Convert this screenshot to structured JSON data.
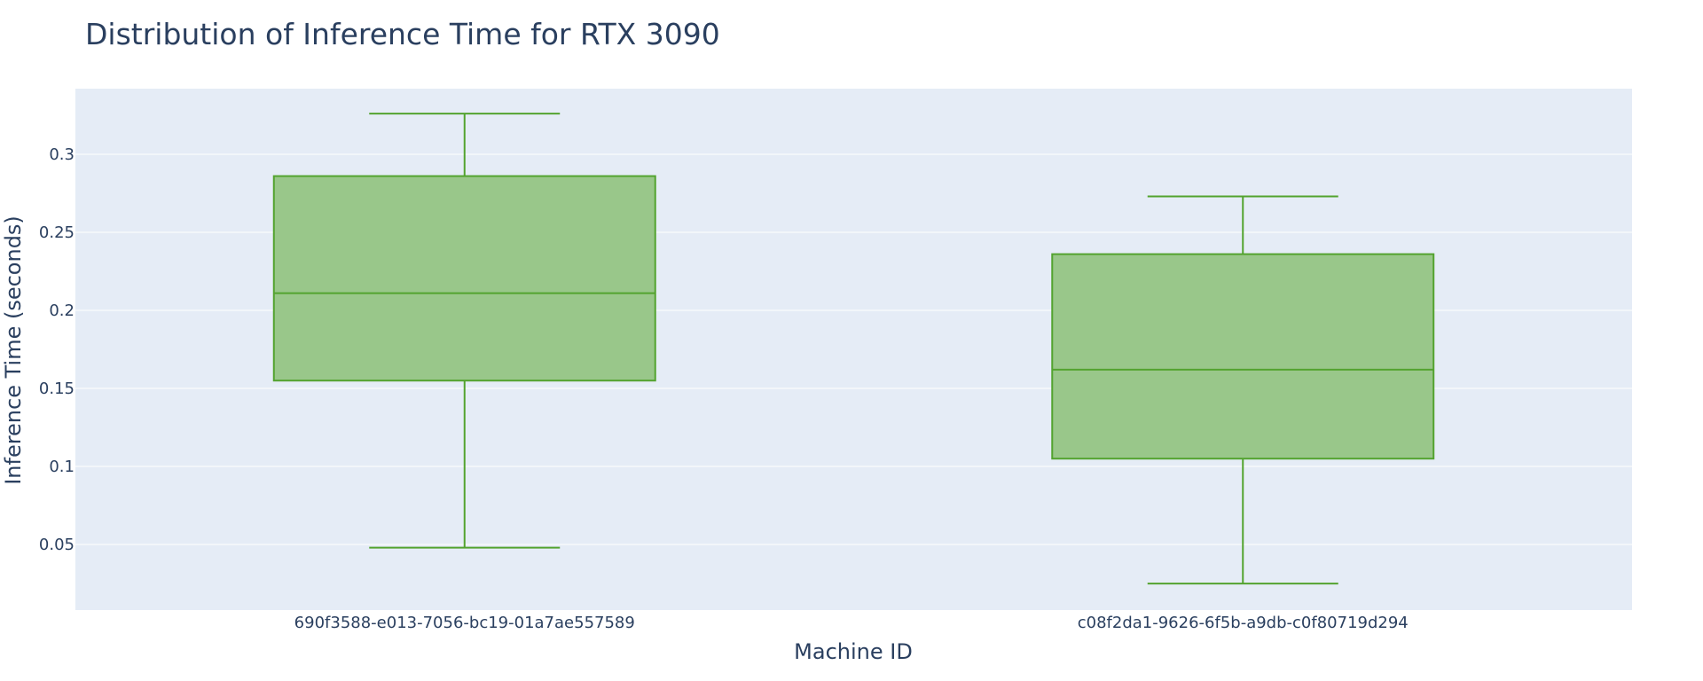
{
  "chart_data": {
    "type": "box",
    "title": "Distribution of Inference Time for RTX 3090",
    "xlabel": "Machine ID",
    "ylabel": "Inference Time (seconds)",
    "categories": [
      "690f3588-e013-7056-bc19-01a7ae557589",
      "c08f2da1-9626-6f5b-a9db-c0f80719d294"
    ],
    "boxes": [
      {
        "category": "690f3588-e013-7056-bc19-01a7ae557589",
        "min": 0.048,
        "q1": 0.155,
        "median": 0.211,
        "q3": 0.286,
        "max": 0.326
      },
      {
        "category": "c08f2da1-9626-6f5b-a9db-c0f80719d294",
        "min": 0.025,
        "q1": 0.105,
        "median": 0.162,
        "q3": 0.236,
        "max": 0.273
      }
    ],
    "yticks": [
      0.05,
      0.1,
      0.15,
      0.2,
      0.25,
      0.3
    ],
    "ytick_labels": [
      "0.05",
      "0.1",
      "0.15",
      "0.2",
      "0.25",
      "0.3"
    ],
    "ylim": [
      0.008,
      0.342
    ],
    "grid": true,
    "legend": false,
    "colors": {
      "box_line": "#53a32f",
      "box_fill": "#99c78a",
      "plot_background": "#e5ecf6",
      "grid": "#ffffff",
      "text": "#2a3f5f"
    }
  }
}
